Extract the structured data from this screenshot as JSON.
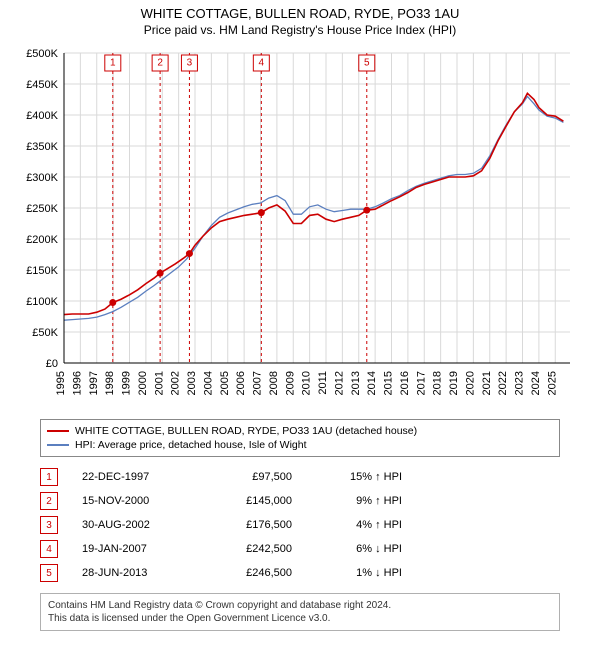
{
  "title": "WHITE COTTAGE, BULLEN ROAD, RYDE, PO33 1AU",
  "subtitle": "Price paid vs. HM Land Registry's House Price Index (HPI)",
  "chart": {
    "type": "line",
    "background_color": "#ffffff",
    "grid_color": "#d9d9d9",
    "axis_color": "#000000",
    "tick_fontsize": 11,
    "x": {
      "min": 1995,
      "max": 2025.9,
      "ticks": [
        1995,
        1996,
        1997,
        1998,
        1999,
        2000,
        2001,
        2002,
        2003,
        2004,
        2005,
        2006,
        2007,
        2008,
        2009,
        2010,
        2011,
        2012,
        2013,
        2014,
        2015,
        2016,
        2017,
        2018,
        2019,
        2020,
        2021,
        2022,
        2023,
        2024,
        2025
      ]
    },
    "y": {
      "min": 0,
      "max": 500000,
      "ticks": [
        0,
        50000,
        100000,
        150000,
        200000,
        250000,
        300000,
        350000,
        400000,
        450000,
        500000
      ],
      "tick_labels": [
        "£0",
        "£50K",
        "£100K",
        "£150K",
        "£200K",
        "£250K",
        "£300K",
        "£350K",
        "£400K",
        "£450K",
        "£500K"
      ]
    },
    "series": [
      {
        "id": "subject",
        "label": "WHITE COTTAGE, BULLEN ROAD, RYDE, PO33 1AU (detached house)",
        "color": "#cc0000",
        "line_width": 1.6,
        "data": [
          [
            1995.0,
            78000
          ],
          [
            1995.5,
            79000
          ],
          [
            1996.0,
            79000
          ],
          [
            1996.5,
            79000
          ],
          [
            1997.0,
            82000
          ],
          [
            1997.5,
            87000
          ],
          [
            1997.98,
            97500
          ],
          [
            1998.5,
            103000
          ],
          [
            1999.0,
            110000
          ],
          [
            1999.5,
            118000
          ],
          [
            2000.0,
            128000
          ],
          [
            2000.5,
            137000
          ],
          [
            2000.87,
            145000
          ],
          [
            2001.3,
            152000
          ],
          [
            2001.8,
            160000
          ],
          [
            2002.3,
            169000
          ],
          [
            2002.66,
            176500
          ],
          [
            2003.0,
            190000
          ],
          [
            2003.5,
            205000
          ],
          [
            2004.0,
            218000
          ],
          [
            2004.5,
            228000
          ],
          [
            2005.0,
            232000
          ],
          [
            2005.5,
            235000
          ],
          [
            2006.0,
            238000
          ],
          [
            2006.5,
            240000
          ],
          [
            2007.05,
            242500
          ],
          [
            2007.5,
            250000
          ],
          [
            2008.0,
            255000
          ],
          [
            2008.5,
            245000
          ],
          [
            2009.0,
            225000
          ],
          [
            2009.5,
            225000
          ],
          [
            2010.0,
            238000
          ],
          [
            2010.5,
            240000
          ],
          [
            2011.0,
            232000
          ],
          [
            2011.5,
            228000
          ],
          [
            2012.0,
            232000
          ],
          [
            2012.5,
            235000
          ],
          [
            2013.0,
            238000
          ],
          [
            2013.49,
            246500
          ],
          [
            2014.0,
            248000
          ],
          [
            2014.5,
            255000
          ],
          [
            2015.0,
            262000
          ],
          [
            2015.5,
            268000
          ],
          [
            2016.0,
            275000
          ],
          [
            2016.5,
            283000
          ],
          [
            2017.0,
            288000
          ],
          [
            2017.5,
            292000
          ],
          [
            2018.0,
            296000
          ],
          [
            2018.5,
            300000
          ],
          [
            2019.0,
            300000
          ],
          [
            2019.5,
            300000
          ],
          [
            2020.0,
            302000
          ],
          [
            2020.5,
            310000
          ],
          [
            2021.0,
            330000
          ],
          [
            2021.5,
            358000
          ],
          [
            2022.0,
            382000
          ],
          [
            2022.5,
            405000
          ],
          [
            2023.0,
            420000
          ],
          [
            2023.3,
            435000
          ],
          [
            2023.7,
            425000
          ],
          [
            2024.0,
            412000
          ],
          [
            2024.5,
            400000
          ],
          [
            2025.0,
            398000
          ],
          [
            2025.5,
            390000
          ]
        ]
      },
      {
        "id": "hpi",
        "label": "HPI: Average price, detached house, Isle of Wight",
        "color": "#5b7fbf",
        "line_width": 1.3,
        "data": [
          [
            1995.0,
            69000
          ],
          [
            1995.5,
            70000
          ],
          [
            1996.0,
            71000
          ],
          [
            1996.5,
            72000
          ],
          [
            1997.0,
            74000
          ],
          [
            1997.5,
            78000
          ],
          [
            1998.0,
            83000
          ],
          [
            1998.5,
            90000
          ],
          [
            1999.0,
            98000
          ],
          [
            1999.5,
            106000
          ],
          [
            2000.0,
            116000
          ],
          [
            2000.5,
            125000
          ],
          [
            2001.0,
            135000
          ],
          [
            2001.5,
            145000
          ],
          [
            2002.0,
            155000
          ],
          [
            2002.5,
            168000
          ],
          [
            2003.0,
            185000
          ],
          [
            2003.5,
            205000
          ],
          [
            2004.0,
            222000
          ],
          [
            2004.5,
            235000
          ],
          [
            2005.0,
            242000
          ],
          [
            2005.5,
            247000
          ],
          [
            2006.0,
            252000
          ],
          [
            2006.5,
            256000
          ],
          [
            2007.0,
            258000
          ],
          [
            2007.5,
            266000
          ],
          [
            2008.0,
            270000
          ],
          [
            2008.5,
            262000
          ],
          [
            2009.0,
            240000
          ],
          [
            2009.5,
            240000
          ],
          [
            2010.0,
            252000
          ],
          [
            2010.5,
            255000
          ],
          [
            2011.0,
            248000
          ],
          [
            2011.5,
            244000
          ],
          [
            2012.0,
            246000
          ],
          [
            2012.5,
            248000
          ],
          [
            2013.0,
            248000
          ],
          [
            2013.5,
            248000
          ],
          [
            2014.0,
            252000
          ],
          [
            2014.5,
            258000
          ],
          [
            2015.0,
            265000
          ],
          [
            2015.5,
            270000
          ],
          [
            2016.0,
            278000
          ],
          [
            2016.5,
            285000
          ],
          [
            2017.0,
            290000
          ],
          [
            2017.5,
            294000
          ],
          [
            2018.0,
            298000
          ],
          [
            2018.5,
            302000
          ],
          [
            2019.0,
            304000
          ],
          [
            2019.5,
            304000
          ],
          [
            2020.0,
            306000
          ],
          [
            2020.5,
            314000
          ],
          [
            2021.0,
            334000
          ],
          [
            2021.5,
            360000
          ],
          [
            2022.0,
            384000
          ],
          [
            2022.5,
            405000
          ],
          [
            2023.0,
            418000
          ],
          [
            2023.3,
            430000
          ],
          [
            2023.7,
            418000
          ],
          [
            2024.0,
            408000
          ],
          [
            2024.5,
            398000
          ],
          [
            2025.0,
            395000
          ],
          [
            2025.5,
            388000
          ]
        ]
      }
    ],
    "markers": [
      {
        "n": 1,
        "x": 1997.98,
        "y": 97500
      },
      {
        "n": 2,
        "x": 2000.87,
        "y": 145000
      },
      {
        "n": 3,
        "x": 2002.66,
        "y": 176500
      },
      {
        "n": 4,
        "x": 2007.05,
        "y": 242500
      },
      {
        "n": 5,
        "x": 2013.49,
        "y": 246500
      }
    ],
    "marker_line_color": "#cc0000",
    "marker_box_color": "#cc0000"
  },
  "legend": {
    "border_color": "#888888",
    "items": [
      {
        "color": "#cc0000",
        "label": "WHITE COTTAGE, BULLEN ROAD, RYDE, PO33 1AU (detached house)"
      },
      {
        "color": "#5b7fbf",
        "label": "HPI: Average price, detached house, Isle of Wight"
      }
    ]
  },
  "transactions": [
    {
      "n": "1",
      "date": "22-DEC-1997",
      "price": "£97,500",
      "diff": "15% ↑ HPI"
    },
    {
      "n": "2",
      "date": "15-NOV-2000",
      "price": "£145,000",
      "diff": "9% ↑ HPI"
    },
    {
      "n": "3",
      "date": "30-AUG-2002",
      "price": "£176,500",
      "diff": "4% ↑ HPI"
    },
    {
      "n": "4",
      "date": "19-JAN-2007",
      "price": "£242,500",
      "diff": "6% ↓ HPI"
    },
    {
      "n": "5",
      "date": "28-JUN-2013",
      "price": "£246,500",
      "diff": "1% ↓ HPI"
    }
  ],
  "footer": {
    "line1": "Contains HM Land Registry data © Crown copyright and database right 2024.",
    "line2": "This data is licensed under the Open Government Licence v3.0."
  }
}
